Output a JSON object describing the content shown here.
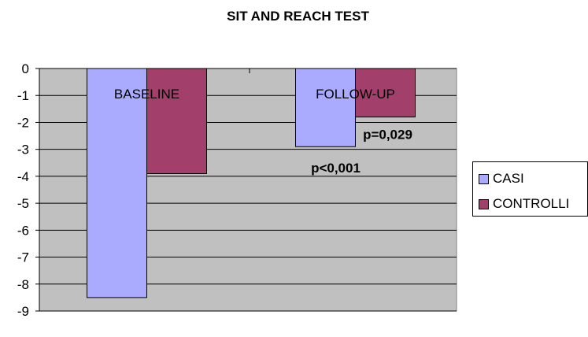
{
  "chart_data": {
    "type": "bar",
    "title": "SIT AND REACH TEST",
    "xlabel": "",
    "ylabel": "",
    "categories": [
      "BASELINE",
      "FOLLOW-UP"
    ],
    "series": [
      {
        "name": "CASI",
        "values": [
          -8.5,
          -2.9
        ],
        "color": "#aaaaff"
      },
      {
        "name": "CONTROLLI",
        "values": [
          -3.9,
          -1.8
        ],
        "color": "#a33f6b"
      }
    ],
    "ylim": [
      -9,
      0
    ],
    "yticks": [
      "0",
      "-1",
      "-2",
      "-3",
      "-4",
      "-5",
      "-6",
      "-7",
      "-8",
      "-9"
    ],
    "annotations": [
      {
        "text": "p<0,001",
        "category": "FOLLOW-UP",
        "series": "CASI"
      },
      {
        "text": "p=0,029",
        "category": "FOLLOW-UP",
        "series": "CONTROLLI"
      }
    ],
    "grid": true,
    "legend_position": "right",
    "plot_background": "#c0c0c0"
  }
}
